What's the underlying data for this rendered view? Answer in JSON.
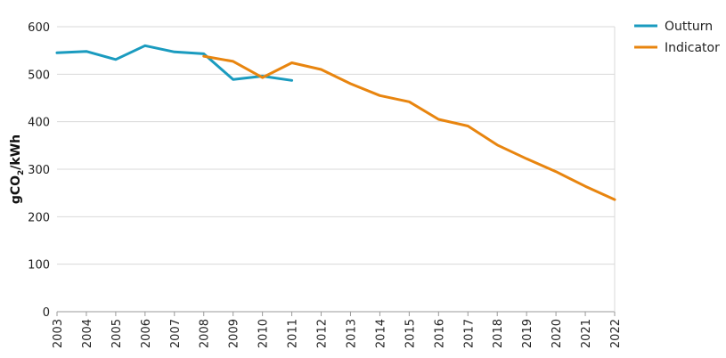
{
  "chart_data": {
    "type": "line",
    "ylabel": {
      "pre": "gCO",
      "sub": "2",
      "post": "/kWh"
    },
    "xlabel": "",
    "ylim": [
      0,
      600
    ],
    "yticks": [
      0,
      100,
      200,
      300,
      400,
      500,
      600
    ],
    "categories": [
      "2003",
      "2004",
      "2005",
      "2006",
      "2007",
      "2008",
      "2009",
      "2010",
      "2011",
      "2012",
      "2013",
      "2014",
      "2015",
      "2016",
      "2017",
      "2018",
      "2019",
      "2020",
      "2021",
      "2022"
    ],
    "grid": true,
    "legend_position": "top-right",
    "series": [
      {
        "name": "Outturn",
        "color": "#1a9bbf",
        "points": [
          {
            "x": "2003",
            "y": 545
          },
          {
            "x": "2004",
            "y": 548
          },
          {
            "x": "2005",
            "y": 531
          },
          {
            "x": "2006",
            "y": 560
          },
          {
            "x": "2007",
            "y": 547
          },
          {
            "x": "2008",
            "y": 543
          },
          {
            "x": "2009",
            "y": 489
          },
          {
            "x": "2010",
            "y": 496
          },
          {
            "x": "2011",
            "y": 487
          }
        ]
      },
      {
        "name": "Indicator",
        "color": "#e8850f",
        "points": [
          {
            "x": "2008",
            "y": 538
          },
          {
            "x": "2009",
            "y": 527
          },
          {
            "x": "2010",
            "y": 493
          },
          {
            "x": "2011",
            "y": 524
          },
          {
            "x": "2012",
            "y": 510
          },
          {
            "x": "2013",
            "y": 480
          },
          {
            "x": "2014",
            "y": 455
          },
          {
            "x": "2015",
            "y": 442
          },
          {
            "x": "2016",
            "y": 405
          },
          {
            "x": "2017",
            "y": 391
          },
          {
            "x": "2018",
            "y": 351
          },
          {
            "x": "2019",
            "y": 322
          },
          {
            "x": "2020",
            "y": 295
          },
          {
            "x": "2021",
            "y": 264
          },
          {
            "x": "2022",
            "y": 236
          }
        ]
      }
    ]
  }
}
